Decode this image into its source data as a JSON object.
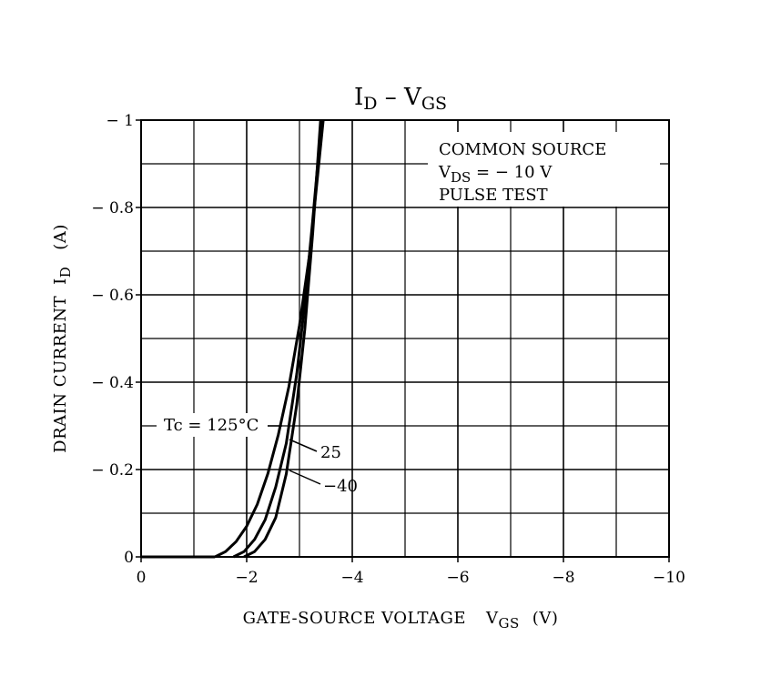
{
  "chart_data": {
    "type": "line",
    "title": {
      "main": "I",
      "sub": "D",
      "sep": " – ",
      "main2": "V",
      "sub2": "GS"
    },
    "xlabel": {
      "text": "GATE-SOURCE VOLTAGE",
      "sym": "V",
      "sub": "GS",
      "unit": "(V)"
    },
    "ylabel": {
      "text": "DRAIN CURRENT",
      "sym": "I",
      "sub": "D",
      "unit": "(A)"
    },
    "xlim": [
      0,
      -10
    ],
    "ylim": [
      0,
      -1
    ],
    "x_ticks": [
      0,
      -2,
      -4,
      -6,
      -8,
      -10
    ],
    "x_tick_labels": [
      "0",
      "−2",
      "−4",
      "−6",
      "−8",
      "−10"
    ],
    "y_ticks": [
      0,
      -0.2,
      -0.4,
      -0.6,
      -0.8,
      -1
    ],
    "y_tick_labels": [
      "0",
      "− 0.2",
      "− 0.4",
      "− 0.6",
      "− 0.8",
      "− 1"
    ],
    "grid": true,
    "conditions": {
      "line1": "COMMON SOURCE",
      "line2_sym": "V",
      "line2_sub": "DS",
      "line2_rest": " = − 10 V",
      "line3": "PULSE TEST"
    },
    "series": [
      {
        "name": "Tc = 125°C",
        "x": [
          -1.4,
          -1.6,
          -1.8,
          -2.0,
          -2.2,
          -2.4,
          -2.6,
          -2.8,
          -3.0,
          -3.2,
          -3.45
        ],
        "y": [
          0,
          -0.012,
          -0.035,
          -0.07,
          -0.12,
          -0.19,
          -0.28,
          -0.39,
          -0.53,
          -0.7,
          -1.0
        ]
      },
      {
        "name": "25",
        "x": [
          -1.75,
          -1.95,
          -2.15,
          -2.35,
          -2.55,
          -2.75,
          -2.95,
          -3.1,
          -3.25,
          -3.42
        ],
        "y": [
          0,
          -0.012,
          -0.04,
          -0.085,
          -0.16,
          -0.26,
          -0.42,
          -0.58,
          -0.77,
          -1.0
        ]
      },
      {
        "name": "−40",
        "x": [
          -1.95,
          -2.15,
          -2.35,
          -2.55,
          -2.75,
          -2.95,
          -3.1,
          -3.25,
          -3.4
        ],
        "y": [
          0,
          -0.012,
          -0.04,
          -0.09,
          -0.19,
          -0.35,
          -0.52,
          -0.74,
          -1.0
        ]
      }
    ]
  }
}
